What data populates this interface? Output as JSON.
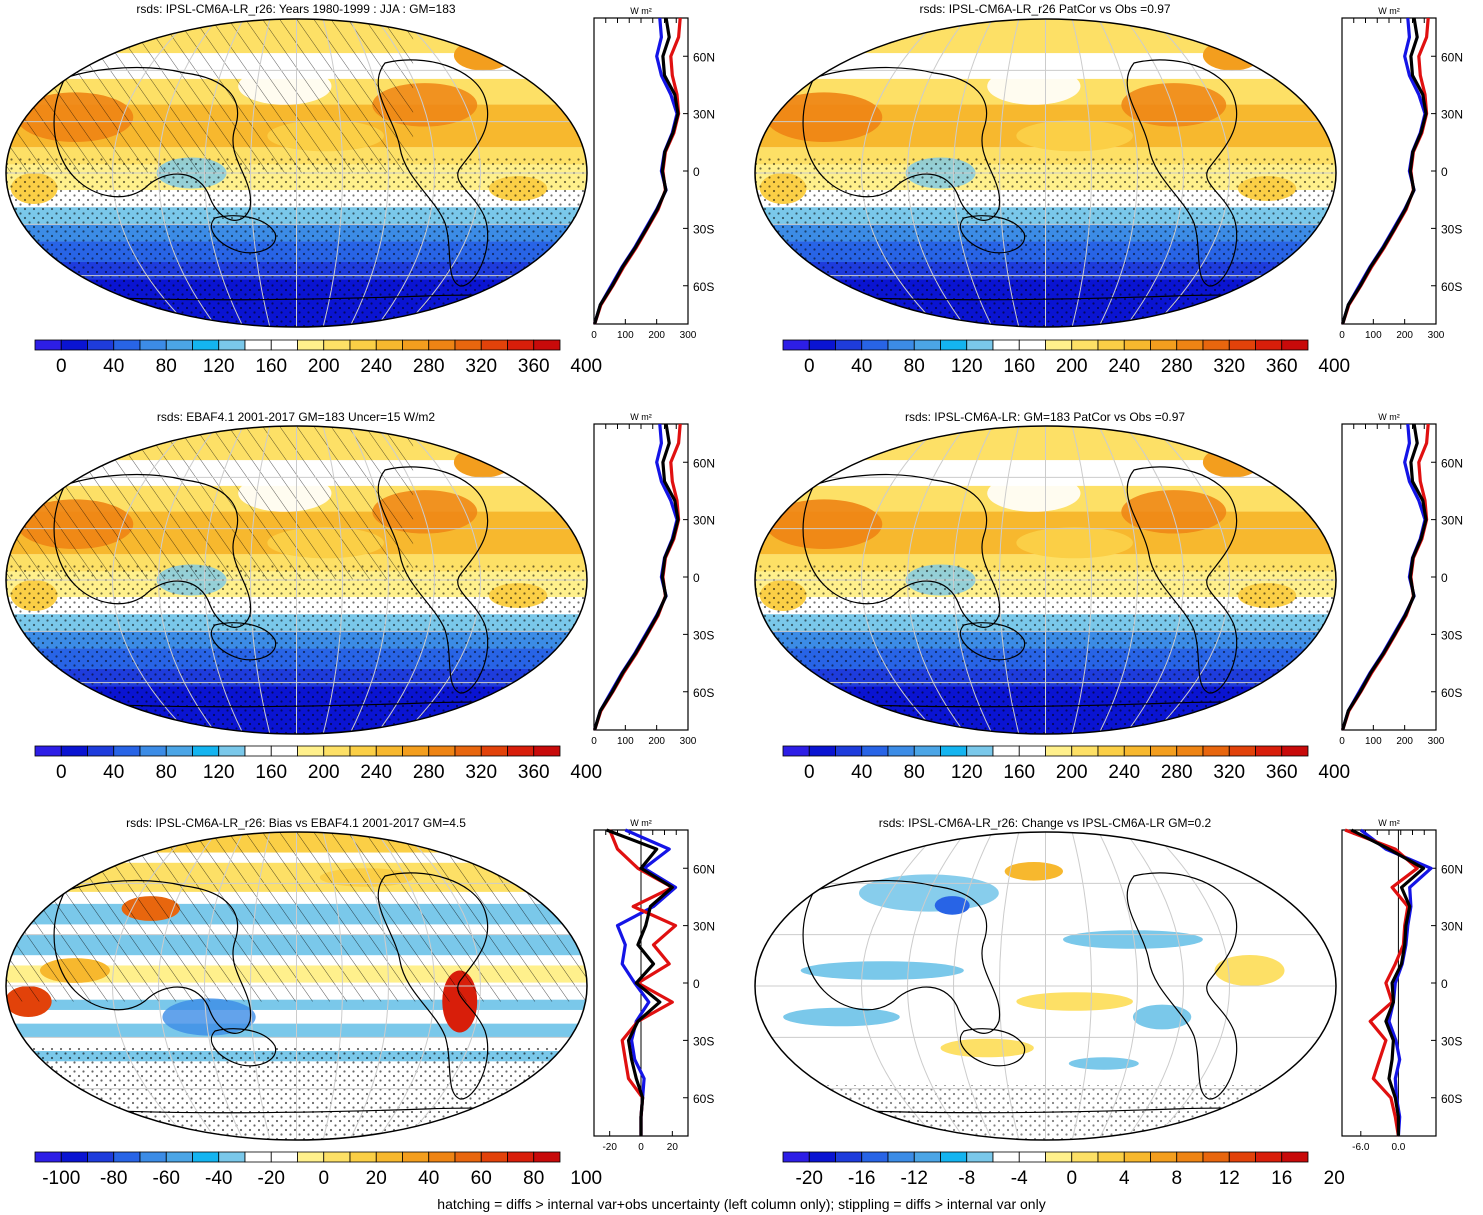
{
  "footer": "hatching = diffs > internal var+obs uncertainty (left column only); stippling = diffs > internal var only",
  "colors": {
    "blue_line": "#1414e6",
    "red_line": "#e01010",
    "black_line": "#000000",
    "palette": [
      "#2d1ee6",
      "#0a14d2",
      "#1e3cdc",
      "#2864e6",
      "#3c8ce6",
      "#4ba5e6",
      "#14b4f0",
      "#7ac8ea",
      "#ffffff",
      "#ffffff",
      "#fff08c",
      "#fde066",
      "#fbcf46",
      "#f7b82e",
      "#f39e1e",
      "#ee8414",
      "#e8660e",
      "#e2420a",
      "#d81e0a",
      "#c80a0a"
    ]
  },
  "chart_data": [
    {
      "type": "heatmap",
      "id": "p1",
      "title": "rsds: IPSL-CM6A-LR_r26: Years 1980-1999 : JJA : GM=183",
      "colorbar": {
        "ticks": [
          "0",
          "40",
          "80",
          "120",
          "160",
          "200",
          "240",
          "280",
          "320",
          "360",
          "400"
        ]
      },
      "profile": {
        "units": "W m²",
        "xticks": [
          "0",
          "100",
          "200",
          "300"
        ],
        "xlim": [
          0,
          300
        ],
        "yticks": [
          "60N",
          "30N",
          "0",
          "30S",
          "60S"
        ],
        "series": [
          {
            "color": "blue",
            "lat": [
              -80,
              -70,
              -60,
              -50,
              -40,
              -30,
              -20,
              -10,
              0,
              10,
              20,
              30,
              40,
              50,
              60,
              70,
              80
            ],
            "values": [
              2,
              20,
              55,
              90,
              130,
              165,
              200,
              230,
              215,
              225,
              250,
              265,
              245,
              215,
              200,
              215,
              210
            ]
          },
          {
            "color": "red",
            "lat": [
              -80,
              -70,
              -60,
              -50,
              -40,
              -30,
              -20,
              -10,
              0,
              10,
              20,
              30,
              40,
              50,
              60,
              70,
              80
            ],
            "values": [
              2,
              22,
              60,
              95,
              135,
              170,
              205,
              228,
              220,
              228,
              255,
              270,
              265,
              250,
              245,
              270,
              275
            ]
          },
          {
            "color": "black",
            "lat": [
              -80,
              -70,
              -60,
              -50,
              -40,
              -30,
              -20,
              -10,
              0,
              10,
              20,
              30,
              40,
              50,
              60,
              70,
              80
            ],
            "values": [
              2,
              20,
              58,
              92,
              132,
              168,
              202,
              229,
              218,
              226,
              252,
              268,
              258,
              225,
              220,
              240,
              230
            ]
          }
        ]
      }
    },
    {
      "type": "heatmap",
      "id": "p2",
      "title": "rsds: IPSL-CM6A-LR_r26 PatCor vs Obs =0.97",
      "colorbar": {
        "ticks": [
          "0",
          "40",
          "80",
          "120",
          "160",
          "200",
          "240",
          "280",
          "320",
          "360",
          "400"
        ]
      },
      "profile": {
        "units": "W m²",
        "xticks": [
          "0",
          "100",
          "200",
          "300"
        ],
        "xlim": [
          0,
          300
        ],
        "yticks": [
          "60N",
          "30N",
          "0",
          "30S",
          "60S"
        ],
        "series": [
          {
            "color": "blue",
            "lat": [
              -80,
              -70,
              -60,
              -50,
              -40,
              -30,
              -20,
              -10,
              0,
              10,
              20,
              30,
              40,
              50,
              60,
              70,
              80
            ],
            "values": [
              2,
              20,
              55,
              90,
              130,
              165,
              200,
              230,
              215,
              225,
              250,
              265,
              245,
              215,
              200,
              215,
              210
            ]
          },
          {
            "color": "red",
            "lat": [
              -80,
              -70,
              -60,
              -50,
              -40,
              -30,
              -20,
              -10,
              0,
              10,
              20,
              30,
              40,
              50,
              60,
              70,
              80
            ],
            "values": [
              2,
              22,
              60,
              95,
              135,
              170,
              205,
              228,
              220,
              228,
              255,
              270,
              265,
              250,
              245,
              270,
              275
            ]
          },
          {
            "color": "black",
            "lat": [
              -80,
              -70,
              -60,
              -50,
              -40,
              -30,
              -20,
              -10,
              0,
              10,
              20,
              30,
              40,
              50,
              60,
              70,
              80
            ],
            "values": [
              2,
              20,
              58,
              92,
              132,
              168,
              202,
              229,
              218,
              226,
              252,
              268,
              258,
              225,
              220,
              240,
              230
            ]
          }
        ]
      }
    },
    {
      "type": "heatmap",
      "id": "p3",
      "title": "rsds: EBAF4.1 2001-2017 GM=183 Uncer=15 W/m2",
      "colorbar": {
        "ticks": [
          "0",
          "40",
          "80",
          "120",
          "160",
          "200",
          "240",
          "280",
          "320",
          "360",
          "400"
        ]
      },
      "profile": {
        "units": "W m²",
        "xticks": [
          "0",
          "100",
          "200",
          "300"
        ],
        "xlim": [
          0,
          300
        ],
        "yticks": [
          "60N",
          "30N",
          "0",
          "30S",
          "60S"
        ],
        "series": [
          {
            "color": "blue",
            "lat": [
              -80,
              -70,
              -60,
              -50,
              -40,
              -30,
              -20,
              -10,
              0,
              10,
              20,
              30,
              40,
              50,
              60,
              70,
              80
            ],
            "values": [
              2,
              20,
              55,
              90,
              130,
              165,
              200,
              230,
              215,
              225,
              250,
              265,
              245,
              215,
              200,
              215,
              210
            ]
          },
          {
            "color": "red",
            "lat": [
              -80,
              -70,
              -60,
              -50,
              -40,
              -30,
              -20,
              -10,
              0,
              10,
              20,
              30,
              40,
              50,
              60,
              70,
              80
            ],
            "values": [
              2,
              22,
              60,
              95,
              135,
              170,
              205,
              228,
              220,
              228,
              255,
              270,
              265,
              250,
              245,
              270,
              275
            ]
          },
          {
            "color": "black",
            "lat": [
              -80,
              -70,
              -60,
              -50,
              -40,
              -30,
              -20,
              -10,
              0,
              10,
              20,
              30,
              40,
              50,
              60,
              70,
              80
            ],
            "values": [
              2,
              20,
              58,
              92,
              132,
              168,
              202,
              229,
              218,
              226,
              252,
              268,
              258,
              225,
              220,
              240,
              230
            ]
          }
        ]
      }
    },
    {
      "type": "heatmap",
      "id": "p4",
      "title": "rsds: IPSL-CM6A-LR: GM=183 PatCor vs Obs =0.97",
      "colorbar": {
        "ticks": [
          "0",
          "40",
          "80",
          "120",
          "160",
          "200",
          "240",
          "280",
          "320",
          "360",
          "400"
        ]
      },
      "profile": {
        "units": "W m²",
        "xticks": [
          "0",
          "100",
          "200",
          "300"
        ],
        "xlim": [
          0,
          300
        ],
        "yticks": [
          "60N",
          "30N",
          "0",
          "30S",
          "60S"
        ],
        "series": [
          {
            "color": "blue",
            "lat": [
              -80,
              -70,
              -60,
              -50,
              -40,
              -30,
              -20,
              -10,
              0,
              10,
              20,
              30,
              40,
              50,
              60,
              70,
              80
            ],
            "values": [
              2,
              20,
              55,
              90,
              130,
              165,
              200,
              230,
              215,
              225,
              250,
              265,
              245,
              215,
              200,
              215,
              210
            ]
          },
          {
            "color": "red",
            "lat": [
              -80,
              -70,
              -60,
              -50,
              -40,
              -30,
              -20,
              -10,
              0,
              10,
              20,
              30,
              40,
              50,
              60,
              70,
              80
            ],
            "values": [
              2,
              22,
              60,
              95,
              135,
              170,
              205,
              228,
              220,
              228,
              255,
              270,
              265,
              250,
              245,
              270,
              275
            ]
          },
          {
            "color": "black",
            "lat": [
              -80,
              -70,
              -60,
              -50,
              -40,
              -30,
              -20,
              -10,
              0,
              10,
              20,
              30,
              40,
              50,
              60,
              70,
              80
            ],
            "values": [
              2,
              20,
              58,
              92,
              132,
              168,
              202,
              229,
              218,
              226,
              252,
              268,
              258,
              225,
              220,
              240,
              230
            ]
          }
        ]
      }
    },
    {
      "type": "heatmap",
      "id": "p5",
      "title": "rsds: IPSL-CM6A-LR_r26: Bias vs EBAF4.1 2001-2017 GM=4.5",
      "colorbar": {
        "ticks": [
          "-100",
          "-80",
          "-60",
          "-40",
          "-20",
          "0",
          "20",
          "40",
          "60",
          "80",
          "100"
        ]
      },
      "profile": {
        "units": "W m²",
        "xticks": [
          "-20",
          "0",
          "20"
        ],
        "xlim": [
          -30,
          30
        ],
        "yticks": [
          "60N",
          "30N",
          "0",
          "30S",
          "60S"
        ],
        "series": [
          {
            "color": "blue",
            "lat": [
              -80,
              -70,
              -60,
              -50,
              -40,
              -30,
              -20,
              -10,
              0,
              10,
              20,
              30,
              40,
              50,
              60,
              70,
              80
            ],
            "values": [
              0,
              0,
              1,
              2,
              -4,
              -6,
              -3,
              5,
              -4,
              -12,
              -10,
              -15,
              8,
              22,
              2,
              18,
              -10
            ]
          },
          {
            "color": "red",
            "lat": [
              -80,
              -70,
              -60,
              -50,
              -40,
              -30,
              -20,
              -10,
              0,
              10,
              20,
              30,
              40,
              50,
              60,
              70,
              80
            ],
            "values": [
              0,
              0,
              1,
              -8,
              -10,
              -12,
              -2,
              20,
              -2,
              18,
              8,
              22,
              -5,
              20,
              -2,
              -15,
              -20
            ]
          },
          {
            "color": "black",
            "lat": [
              -80,
              -70,
              -60,
              -50,
              -40,
              -30,
              -20,
              -10,
              0,
              10,
              20,
              30,
              40,
              50,
              60,
              70,
              80
            ],
            "values": [
              0,
              0,
              1,
              -3,
              -6,
              -8,
              -2,
              12,
              -3,
              8,
              -2,
              3,
              6,
              20,
              0,
              10,
              -22
            ]
          }
        ]
      }
    },
    {
      "type": "heatmap",
      "id": "p6",
      "title": "rsds: IPSL-CM6A-LR_r26: Change vs IPSL-CM6A-LR GM=0.2",
      "colorbar": {
        "ticks": [
          "-20",
          "-16",
          "-12",
          "-8",
          "-4",
          "0",
          "4",
          "8",
          "12",
          "16",
          "20"
        ]
      },
      "profile": {
        "units": "W m²",
        "xticks": [
          "-6.0",
          "0.0"
        ],
        "xlim": [
          -9,
          6
        ],
        "yticks": [
          "60N",
          "30N",
          "0",
          "30S",
          "60S"
        ],
        "series": [
          {
            "color": "blue",
            "lat": [
              -80,
              -70,
              -60,
              -50,
              -40,
              -30,
              -20,
              -10,
              0,
              10,
              20,
              30,
              40,
              50,
              60,
              70,
              80
            ],
            "values": [
              0,
              0.2,
              -0.3,
              -0.5,
              0.2,
              -0.4,
              -1.5,
              -0.8,
              -0.5,
              0.6,
              1.2,
              1.5,
              2.0,
              1.8,
              5.2,
              -2.0,
              -6.0
            ]
          },
          {
            "color": "red",
            "lat": [
              -80,
              -70,
              -60,
              -50,
              -40,
              -30,
              -20,
              -10,
              0,
              10,
              20,
              30,
              40,
              50,
              60,
              70,
              80
            ],
            "values": [
              0,
              -0.5,
              -1.2,
              -4.0,
              -3.0,
              -2.0,
              -4.5,
              -1.0,
              -2.0,
              -0.5,
              0.8,
              1.0,
              1.5,
              -1.0,
              3.0,
              -0.5,
              -8.5
            ]
          },
          {
            "color": "black",
            "lat": [
              -80,
              -70,
              -60,
              -50,
              -40,
              -30,
              -20,
              -10,
              0,
              10,
              20,
              30,
              40,
              50,
              60,
              70,
              80
            ],
            "values": [
              0,
              0,
              -0.5,
              -1.5,
              -1.0,
              -0.8,
              -2.0,
              -0.8,
              -1.0,
              0.5,
              1.0,
              1.2,
              1.8,
              0.5,
              4.0,
              -1.5,
              -7.5
            ]
          }
        ]
      }
    }
  ]
}
